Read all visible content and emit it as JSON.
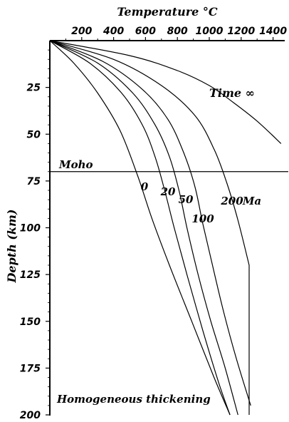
{
  "chart_data": {
    "type": "line",
    "title": "",
    "xlabel": "Temperature °C",
    "ylabel": "Depth (km)",
    "xlim": [
      0,
      1500
    ],
    "ylim": [
      0,
      200
    ],
    "x_axis_position": "top",
    "y_axis_inverted": true,
    "xticks": [
      200,
      400,
      600,
      800,
      1000,
      1200,
      1400
    ],
    "yticks": [
      25,
      50,
      75,
      100,
      125,
      150,
      175,
      200
    ],
    "grid": false,
    "series": [
      {
        "name": "0",
        "points": [
          [
            0,
            0
          ],
          [
            150,
            12
          ],
          [
            300,
            28
          ],
          [
            440,
            48
          ],
          [
            550,
            72
          ],
          [
            640,
            95
          ],
          [
            750,
            120
          ],
          [
            890,
            150
          ],
          [
            1030,
            180
          ],
          [
            1130,
            200
          ]
        ]
      },
      {
        "name": "20",
        "points": [
          [
            0,
            0
          ],
          [
            250,
            12
          ],
          [
            450,
            28
          ],
          [
            580,
            45
          ],
          [
            660,
            62
          ],
          [
            720,
            80
          ],
          [
            780,
            100
          ],
          [
            860,
            125
          ],
          [
            960,
            155
          ],
          [
            1060,
            183
          ],
          [
            1130,
            200
          ]
        ]
      },
      {
        "name": "50",
        "points": [
          [
            0,
            0
          ],
          [
            300,
            12
          ],
          [
            520,
            28
          ],
          [
            660,
            45
          ],
          [
            750,
            62
          ],
          [
            810,
            80
          ],
          [
            860,
            100
          ],
          [
            930,
            125
          ],
          [
            1010,
            150
          ],
          [
            1100,
            175
          ],
          [
            1180,
            200
          ]
        ]
      },
      {
        "name": "100",
        "points": [
          [
            0,
            0
          ],
          [
            330,
            11
          ],
          [
            580,
            26
          ],
          [
            740,
            42
          ],
          [
            840,
            60
          ],
          [
            910,
            78
          ],
          [
            960,
            98
          ],
          [
            1020,
            120
          ],
          [
            1090,
            145
          ],
          [
            1170,
            170
          ],
          [
            1260,
            195
          ]
        ]
      },
      {
        "name": "200 Ma",
        "points": [
          [
            0,
            0
          ],
          [
            400,
            10
          ],
          [
            700,
            24
          ],
          [
            910,
            40
          ],
          [
            1030,
            58
          ],
          [
            1110,
            76
          ],
          [
            1180,
            96
          ],
          [
            1250,
            120
          ],
          [
            1250,
            200
          ]
        ]
      },
      {
        "name": "Time ∞",
        "points": [
          [
            0,
            0
          ],
          [
            500,
            8
          ],
          [
            800,
            16
          ],
          [
            1000,
            24
          ],
          [
            1150,
            33
          ],
          [
            1300,
            43
          ],
          [
            1450,
            55
          ]
        ]
      }
    ],
    "annotations": {
      "moho": {
        "label": "Moho",
        "depth": 70
      },
      "footer": "Homogeneous thickening"
    },
    "labels": {
      "curve_0": "0",
      "curve_20": "20",
      "curve_50": "50",
      "curve_100": "100",
      "curve_200": "200",
      "curve_200_unit": "Ma",
      "time_inf": "Time ∞"
    }
  }
}
